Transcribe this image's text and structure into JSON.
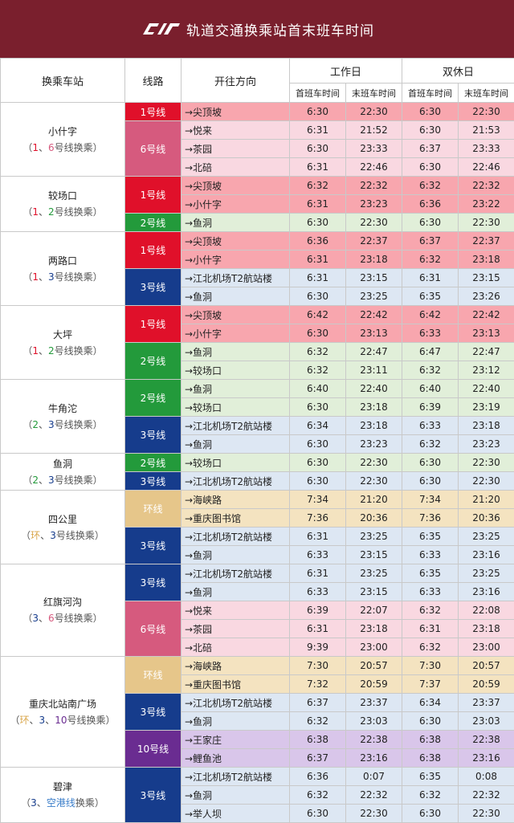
{
  "title": "轨道交通换乘站首末班车时间",
  "logo_icon": "crt-logo-icon",
  "headers": {
    "station": "换乘车站",
    "line": "线路",
    "direction": "开往方向",
    "weekday": "工作日",
    "weekend": "双休日",
    "first": "首班车时间",
    "last": "末班车时间"
  },
  "lines": {
    "1": {
      "label": "1号线",
      "color": "#e0102a",
      "row_bg": "#f8a6ae"
    },
    "2": {
      "label": "2号线",
      "color": "#239a3b",
      "row_bg": "#e1efd9"
    },
    "3": {
      "label": "3号线",
      "color": "#163c8c",
      "row_bg": "#dde7f3"
    },
    "6": {
      "label": "6号线",
      "color": "#d65a7e",
      "row_bg": "#f9d8e1"
    },
    "10": {
      "label": "10号线",
      "color": "#6a2c91",
      "row_bg": "#d9c6ea"
    },
    "loop": {
      "label": "环线",
      "color": "#e6c68a",
      "row_bg": "#f4e3c0"
    }
  },
  "stations": [
    {
      "name": "小什字",
      "note": [
        [
          "（",
          "#555"
        ],
        [
          "1",
          "#e0102a"
        ],
        [
          "、",
          "#555"
        ],
        [
          "6",
          "#d65a7e"
        ],
        [
          "号线换乘）",
          "#555"
        ]
      ],
      "groups": [
        {
          "line": "1",
          "rows": [
            [
              "→尖顶坡",
              "6:30",
              "22:30",
              "6:30",
              "22:30"
            ]
          ]
        },
        {
          "line": "6",
          "rows": [
            [
              "→悦来",
              "6:31",
              "21:52",
              "6:30",
              "21:53"
            ],
            [
              "→茶园",
              "6:30",
              "23:33",
              "6:37",
              "23:33"
            ],
            [
              "→北碚",
              "6:31",
              "22:46",
              "6:30",
              "22:46"
            ]
          ]
        }
      ]
    },
    {
      "name": "较场口",
      "note": [
        [
          "（",
          "#555"
        ],
        [
          "1",
          "#e0102a"
        ],
        [
          "、",
          "#555"
        ],
        [
          "2",
          "#239a3b"
        ],
        [
          "号线换乘）",
          "#555"
        ]
      ],
      "groups": [
        {
          "line": "1",
          "rows": [
            [
              "→尖顶坡",
              "6:32",
              "22:32",
              "6:32",
              "22:32"
            ],
            [
              "→小什字",
              "6:31",
              "23:23",
              "6:36",
              "23:22"
            ]
          ]
        },
        {
          "line": "2",
          "rows": [
            [
              "→鱼洞",
              "6:30",
              "22:30",
              "6:30",
              "22:30"
            ]
          ]
        }
      ]
    },
    {
      "name": "两路口",
      "note": [
        [
          "（",
          "#555"
        ],
        [
          "1",
          "#e0102a"
        ],
        [
          "、",
          "#555"
        ],
        [
          "3",
          "#163c8c"
        ],
        [
          "号线换乘）",
          "#555"
        ]
      ],
      "groups": [
        {
          "line": "1",
          "rows": [
            [
              "→尖顶坡",
              "6:36",
              "22:37",
              "6:37",
              "22:37"
            ],
            [
              "→小什字",
              "6:31",
              "23:18",
              "6:32",
              "23:18"
            ]
          ]
        },
        {
          "line": "3",
          "rows": [
            [
              "→江北机场T2航站楼",
              "6:31",
              "23:15",
              "6:31",
              "23:15"
            ],
            [
              "→鱼洞",
              "6:30",
              "23:25",
              "6:35",
              "23:26"
            ]
          ]
        }
      ]
    },
    {
      "name": "大坪",
      "note": [
        [
          "（",
          "#555"
        ],
        [
          "1",
          "#e0102a"
        ],
        [
          "、",
          "#555"
        ],
        [
          "2",
          "#239a3b"
        ],
        [
          "号线换乘）",
          "#555"
        ]
      ],
      "groups": [
        {
          "line": "1",
          "rows": [
            [
              "→尖顶坡",
              "6:42",
              "22:42",
              "6:42",
              "22:42"
            ],
            [
              "→小什字",
              "6:30",
              "23:13",
              "6:33",
              "23:13"
            ]
          ]
        },
        {
          "line": "2",
          "rows": [
            [
              "→鱼洞",
              "6:32",
              "22:47",
              "6:47",
              "22:47"
            ],
            [
              "→较场口",
              "6:32",
              "23:11",
              "6:32",
              "23:12"
            ]
          ]
        }
      ]
    },
    {
      "name": "牛角沱",
      "note": [
        [
          "（",
          "#555"
        ],
        [
          "2",
          "#239a3b"
        ],
        [
          "、",
          "#555"
        ],
        [
          "3",
          "#163c8c"
        ],
        [
          "号线换乘）",
          "#555"
        ]
      ],
      "groups": [
        {
          "line": "2",
          "rows": [
            [
              "→鱼洞",
              "6:40",
              "22:40",
              "6:40",
              "22:40"
            ],
            [
              "→较场口",
              "6:30",
              "23:18",
              "6:39",
              "23:19"
            ]
          ]
        },
        {
          "line": "3",
          "rows": [
            [
              "→江北机场T2航站楼",
              "6:34",
              "23:18",
              "6:33",
              "23:18"
            ],
            [
              "→鱼洞",
              "6:30",
              "23:23",
              "6:32",
              "23:23"
            ]
          ]
        }
      ]
    },
    {
      "name": "鱼洞",
      "note": [
        [
          "（",
          "#555"
        ],
        [
          "2",
          "#239a3b"
        ],
        [
          "、",
          "#555"
        ],
        [
          "3",
          "#163c8c"
        ],
        [
          "号线换乘）",
          "#555"
        ]
      ],
      "groups": [
        {
          "line": "2",
          "rows": [
            [
              "→较场口",
              "6:30",
              "22:30",
              "6:30",
              "22:30"
            ]
          ]
        },
        {
          "line": "3",
          "rows": [
            [
              "→江北机场T2航站楼",
              "6:30",
              "22:30",
              "6:30",
              "22:30"
            ]
          ]
        }
      ]
    },
    {
      "name": "四公里",
      "note": [
        [
          "（",
          "#555"
        ],
        [
          "环",
          "#d9a64a"
        ],
        [
          "、",
          "#555"
        ],
        [
          "3",
          "#163c8c"
        ],
        [
          "号线换乘）",
          "#555"
        ]
      ],
      "groups": [
        {
          "line": "loop",
          "rows": [
            [
              "→海峡路",
              "7:34",
              "21:20",
              "7:34",
              "21:20"
            ],
            [
              "→重庆图书馆",
              "7:36",
              "20:36",
              "7:36",
              "20:36"
            ]
          ]
        },
        {
          "line": "3",
          "rows": [
            [
              "→江北机场T2航站楼",
              "6:31",
              "23:25",
              "6:35",
              "23:25"
            ],
            [
              "→鱼洞",
              "6:33",
              "23:15",
              "6:33",
              "23:16"
            ]
          ]
        }
      ]
    },
    {
      "name": "红旗河沟",
      "note": [
        [
          "（",
          "#555"
        ],
        [
          "3",
          "#163c8c"
        ],
        [
          "、",
          "#555"
        ],
        [
          "6",
          "#d65a7e"
        ],
        [
          "号线换乘）",
          "#555"
        ]
      ],
      "groups": [
        {
          "line": "3",
          "rows": [
            [
              "→江北机场T2航站楼",
              "6:31",
              "23:25",
              "6:35",
              "23:25"
            ],
            [
              "→鱼洞",
              "6:33",
              "23:15",
              "6:33",
              "23:16"
            ]
          ]
        },
        {
          "line": "6",
          "rows": [
            [
              "→悦来",
              "6:39",
              "22:07",
              "6:32",
              "22:08"
            ],
            [
              "→茶园",
              "6:31",
              "23:18",
              "6:31",
              "23:18"
            ],
            [
              "→北碚",
              "9:39",
              "23:00",
              "6:32",
              "23:00"
            ]
          ]
        }
      ]
    },
    {
      "name": "重庆北站南广场",
      "note": [
        [
          "（",
          "#555"
        ],
        [
          "环",
          "#d9a64a"
        ],
        [
          "、",
          "#555"
        ],
        [
          "3",
          "#163c8c"
        ],
        [
          "、",
          "#555"
        ],
        [
          "10",
          "#6a2c91"
        ],
        [
          "号线换乘）",
          "#555"
        ]
      ],
      "groups": [
        {
          "line": "loop",
          "rows": [
            [
              "→海峡路",
              "7:30",
              "20:57",
              "7:30",
              "20:57"
            ],
            [
              "→重庆图书馆",
              "7:32",
              "20:59",
              "7:37",
              "20:59"
            ]
          ]
        },
        {
          "line": "3",
          "rows": [
            [
              "→江北机场T2航站楼",
              "6:37",
              "23:37",
              "6:34",
              "23:37"
            ],
            [
              "→鱼洞",
              "6:32",
              "23:03",
              "6:30",
              "23:03"
            ]
          ]
        },
        {
          "line": "10",
          "rows": [
            [
              "→王家庄",
              "6:38",
              "22:38",
              "6:38",
              "22:38"
            ],
            [
              "→鲤鱼池",
              "6:37",
              "23:16",
              "6:38",
              "23:16"
            ]
          ]
        }
      ]
    },
    {
      "name": "碧津",
      "note": [
        [
          "（",
          "#555"
        ],
        [
          "3",
          "#163c8c"
        ],
        [
          "、",
          "#555"
        ],
        [
          "空港线",
          "#3a7dc9"
        ],
        [
          "换乘）",
          "#555"
        ]
      ],
      "groups": [
        {
          "line": "3",
          "rows": [
            [
              "→江北机场T2航站楼",
              "6:36",
              "0:07",
              "6:35",
              "0:08"
            ],
            [
              "→鱼洞",
              "6:32",
              "22:32",
              "6:32",
              "22:32"
            ],
            [
              "→举人坝",
              "6:30",
              "22:30",
              "6:30",
              "22:30"
            ]
          ]
        }
      ]
    }
  ]
}
